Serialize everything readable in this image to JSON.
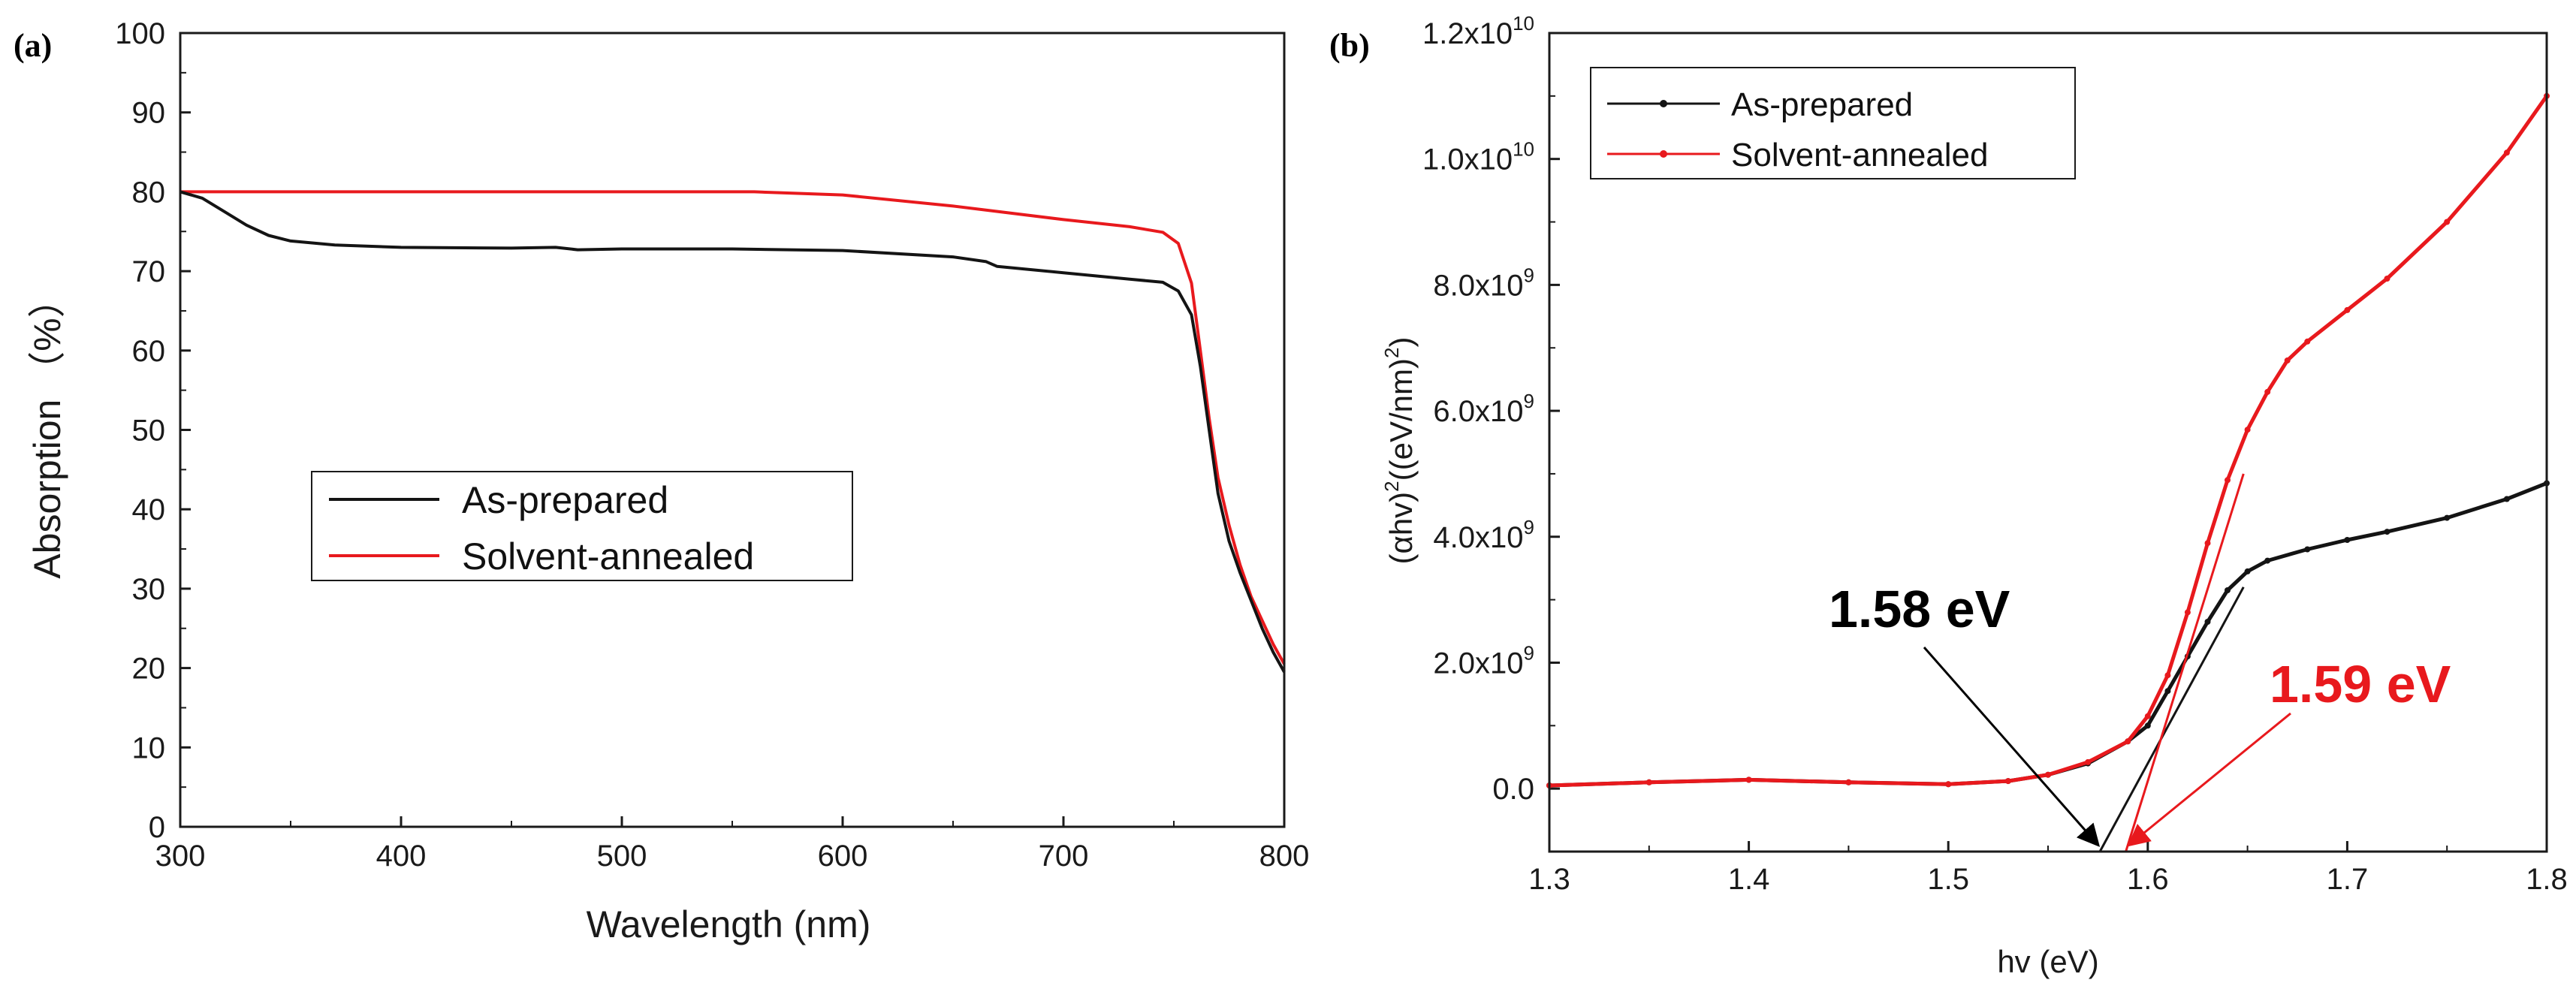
{
  "colors": {
    "as_prepared": "#141414",
    "solvent_annealed": "#e8191d",
    "axis": "#1a1a1a"
  },
  "chart_data": [
    {
      "type": "line",
      "panel_label": "(a)",
      "xlabel": "Wavelength (nm)",
      "ylabel": "Absorption （%）",
      "xlim": [
        300,
        800
      ],
      "ylim": [
        0,
        100
      ],
      "xticks": [
        300,
        400,
        500,
        600,
        700,
        800
      ],
      "yticks": [
        0,
        10,
        20,
        30,
        40,
        50,
        60,
        70,
        80,
        90,
        100
      ],
      "grid": false,
      "legend_position": "center-left",
      "series": [
        {
          "name": "As-prepared",
          "x": [
            300,
            310,
            320,
            330,
            340,
            350,
            370,
            400,
            450,
            470,
            480,
            500,
            550,
            600,
            650,
            665,
            670,
            700,
            730,
            745,
            752,
            758,
            762,
            766,
            770,
            775,
            780,
            785,
            790,
            795,
            800
          ],
          "y": [
            80,
            79.2,
            77.5,
            75.8,
            74.5,
            73.8,
            73.3,
            73.0,
            72.9,
            73.0,
            72.7,
            72.8,
            72.8,
            72.6,
            71.8,
            71.2,
            70.6,
            69.8,
            69.0,
            68.6,
            67.5,
            64.5,
            58.0,
            50.0,
            42.0,
            36.0,
            32.0,
            28.5,
            25.0,
            22.0,
            19.5
          ]
        },
        {
          "name": "Solvent-annealed",
          "x": [
            300,
            400,
            500,
            560,
            600,
            650,
            700,
            730,
            745,
            752,
            758,
            762,
            766,
            770,
            775,
            780,
            785,
            790,
            795,
            800
          ],
          "y": [
            80,
            80,
            80,
            80,
            79.6,
            78.2,
            76.5,
            75.6,
            74.9,
            73.5,
            68.5,
            60.0,
            51.5,
            44.0,
            38.0,
            33.0,
            29.0,
            26.0,
            23.0,
            20.5
          ]
        }
      ]
    },
    {
      "type": "line",
      "panel_label": "(b)",
      "xlabel": "hv (eV)",
      "ylabel": "(αhv)²((eV/nm)²)",
      "ylabel_parts": {
        "p1": "(αhv)",
        "s1": "2",
        "p2": "((eV/nm)",
        "s2": "2",
        "p3": ")"
      },
      "xlim": [
        1.3,
        1.8
      ],
      "ylim": [
        -1000000000.0,
        12000000000.0
      ],
      "xticks": [
        1.3,
        1.4,
        1.5,
        1.6,
        1.7,
        1.8
      ],
      "xtick_labels": [
        "1.3",
        "1.4",
        "1.5",
        "1.6",
        "1.7",
        "1.8"
      ],
      "yticks": [
        0,
        2000000000.0,
        4000000000.0,
        6000000000.0,
        8000000000.0,
        10000000000.0,
        12000000000.0
      ],
      "ytick_labels": [
        {
          "base": "0.0",
          "exp": ""
        },
        {
          "base": "2.0x10",
          "exp": "9"
        },
        {
          "base": "4.0x10",
          "exp": "9"
        },
        {
          "base": "6.0x10",
          "exp": "9"
        },
        {
          "base": "8.0x10",
          "exp": "9"
        },
        {
          "base": "1.0x10",
          "exp": "10"
        },
        {
          "base": "1.2x10",
          "exp": "10"
        }
      ],
      "grid": false,
      "legend_position": "top-left",
      "series": [
        {
          "name": "As-prepared",
          "x": [
            1.3,
            1.35,
            1.4,
            1.45,
            1.5,
            1.53,
            1.55,
            1.57,
            1.59,
            1.6,
            1.61,
            1.62,
            1.63,
            1.64,
            1.65,
            1.66,
            1.68,
            1.7,
            1.72,
            1.75,
            1.78,
            1.8
          ],
          "y": [
            50000000.0,
            100000000.0,
            140000000.0,
            100000000.0,
            70000000.0,
            120000000.0,
            220000000.0,
            400000000.0,
            750000000.0,
            1000000000.0,
            1550000000.0,
            2100000000.0,
            2650000000.0,
            3150000000.0,
            3450000000.0,
            3620000000.0,
            3800000000.0,
            3950000000.0,
            4080000000.0,
            4300000000.0,
            4600000000.0,
            4850000000.0
          ]
        },
        {
          "name": "Solvent-annealed",
          "x": [
            1.3,
            1.35,
            1.4,
            1.45,
            1.5,
            1.53,
            1.55,
            1.57,
            1.59,
            1.6,
            1.61,
            1.62,
            1.63,
            1.64,
            1.65,
            1.66,
            1.67,
            1.68,
            1.7,
            1.72,
            1.75,
            1.78,
            1.8
          ],
          "y": [
            50000000.0,
            100000000.0,
            140000000.0,
            100000000.0,
            70000000.0,
            120000000.0,
            220000000.0,
            420000000.0,
            750000000.0,
            1150000000.0,
            1800000000.0,
            2800000000.0,
            3900000000.0,
            4900000000.0,
            5700000000.0,
            6300000000.0,
            6800000000.0,
            7100000000.0,
            7600000000.0,
            8100000000.0,
            9000000000.0,
            10100000000.0,
            11000000000.0
          ]
        }
      ],
      "tangents": [
        {
          "series": "As-prepared",
          "from": [
            1.576,
            -1000000000.0
          ],
          "to": [
            1.648,
            3200000000.0
          ]
        },
        {
          "series": "Solvent-annealed",
          "from": [
            1.589,
            -1000000000.0
          ],
          "to": [
            1.648,
            5000000000.0
          ]
        }
      ],
      "annotations": [
        {
          "text": "1.58 eV",
          "color": "black",
          "target_x": 1.576
        },
        {
          "text": "1.59 eV",
          "color": "red",
          "target_x": 1.589
        }
      ]
    }
  ]
}
